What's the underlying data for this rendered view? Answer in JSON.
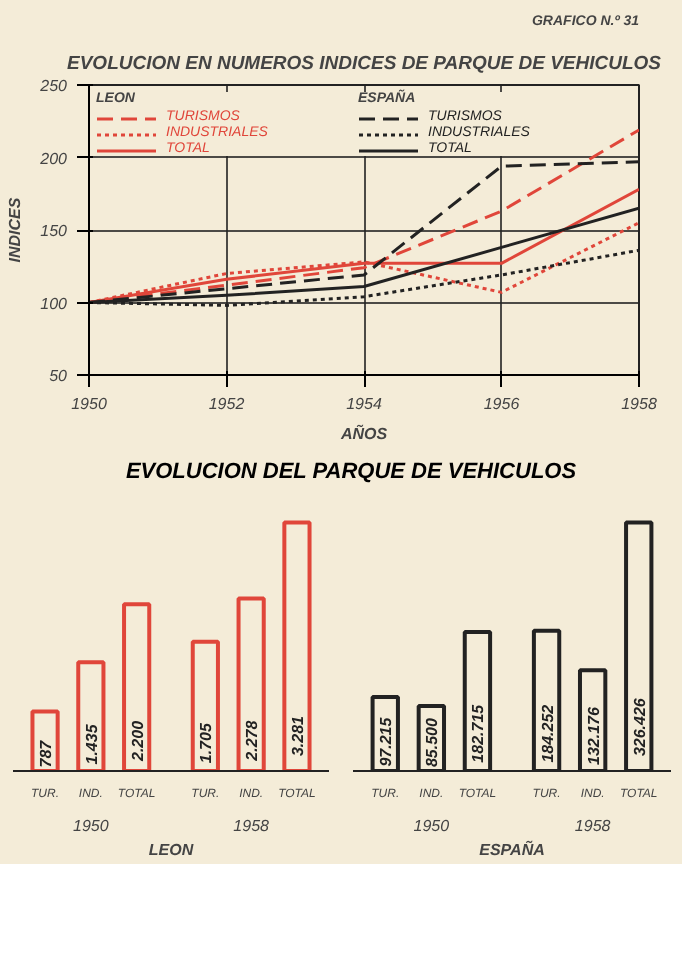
{
  "chart_data": [
    {
      "type": "line",
      "title": "EVOLUCION EN NUMEROS INDICES DE PARQUE DE VEHICULOS",
      "xlabel": "AÑOS",
      "ylabel": "INDICES",
      "annotations": [
        "GRAFICO N.º 31",
        "LEON",
        "ESPAÑA"
      ],
      "xlim": [
        1950,
        1958
      ],
      "ylim": [
        50,
        250
      ],
      "xticks": [
        1950,
        1952,
        1954,
        1956,
        1958
      ],
      "yticks": [
        50,
        100,
        150,
        200,
        250
      ],
      "grid": true,
      "legend": "top left",
      "series": [
        {
          "name": "TURISMOS",
          "color": "#e0463a",
          "line_style": "dashed",
          "x": [
            1950,
            1954,
            1956,
            1958
          ],
          "values": [
            100,
            124,
            163,
            219
          ]
        },
        {
          "name": "INDUSTRIALES",
          "color": "#e0463a",
          "line_style": "dotted",
          "x": [
            1950,
            1952,
            1954,
            1956,
            1958
          ],
          "values": [
            100,
            120,
            128,
            107,
            155
          ]
        },
        {
          "name": "TOTAL",
          "color": "#e0463a",
          "line_style": "solid",
          "x": [
            1950,
            1952,
            1954,
            1956,
            1958
          ],
          "values": [
            100,
            116,
            127,
            127,
            178
          ]
        },
        {
          "name": "TURISMOS",
          "color": "#222222",
          "line_style": "dashed",
          "x": [
            1950,
            1954,
            1956,
            1958
          ],
          "values": [
            100,
            119,
            194,
            197
          ]
        },
        {
          "name": "INDUSTRIALES",
          "color": "#222222",
          "line_style": "dotted",
          "x": [
            1950,
            1952,
            1954,
            1956,
            1958
          ],
          "values": [
            100,
            98,
            104,
            119,
            136
          ]
        },
        {
          "name": "TOTAL",
          "color": "#222222",
          "line_style": "solid",
          "x": [
            1950,
            1952,
            1954,
            1956,
            1958
          ],
          "values": [
            100,
            105,
            111,
            138,
            165
          ]
        }
      ]
    },
    {
      "type": "bar",
      "title": "EVOLUCION DEL PARQUE DE VEHICULOS",
      "xlabel": "LEON",
      "annotations": [
        "1950",
        "1958"
      ],
      "categories": [
        "TUR.",
        "IND.",
        "TOTAL",
        "TUR.",
        "IND.",
        "TOTAL"
      ],
      "color": "#e0463a",
      "values": [
        787,
        1435,
        2200,
        1705,
        2278,
        3281
      ],
      "value_labels": [
        "787",
        "1.435",
        "2.200",
        "1.705",
        "2.278",
        "3.281"
      ]
    },
    {
      "type": "bar",
      "xlabel": "ESPAÑA",
      "annotations": [
        "1950",
        "1958"
      ],
      "categories": [
        "TUR.",
        "IND.",
        "TOTAL",
        "TUR.",
        "IND.",
        "TOTAL"
      ],
      "color": "#222222",
      "values": [
        97215,
        85500,
        182715,
        184252,
        132176,
        326426
      ],
      "value_labels": [
        "97.215",
        "85.500",
        "182.715",
        "184.252",
        "132.176",
        "326.426"
      ]
    }
  ]
}
